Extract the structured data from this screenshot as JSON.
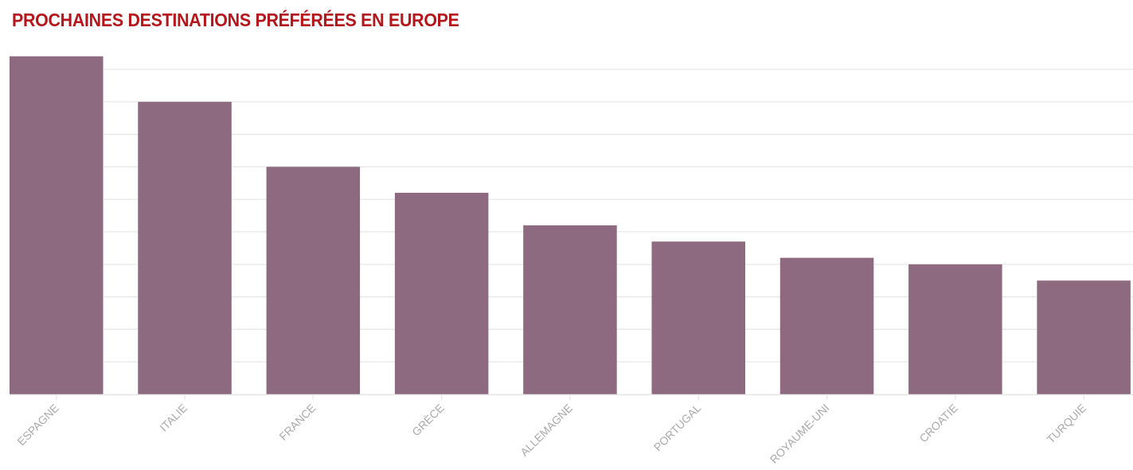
{
  "title": "PROCHAINES DESTINATIONS PRÉFÉRÉES EN EUROPE",
  "colors": {
    "title": "#b5161b",
    "bar": "#8d6a7f",
    "grid": "#e6e6e6",
    "tick_label": "#aaaaaa"
  },
  "chart_data": {
    "type": "bar",
    "title": "PROCHAINES DESTINATIONS PRÉFÉRÉES EN EUROPE",
    "xlabel": "",
    "ylabel": "",
    "categories": [
      "ESPAGNE",
      "ITALIE",
      "FRANCE",
      "GRÈCE",
      "ALLEMAGNE",
      "PORTUGAL",
      "ROYAUME-UNI",
      "CROATIE",
      "TURQUIE"
    ],
    "values": [
      10.4,
      9.0,
      7.0,
      6.2,
      5.2,
      4.7,
      4.2,
      4.0,
      3.5
    ],
    "ylim": [
      0,
      10
    ],
    "grid": true,
    "y_tick_labels_shown": false,
    "legend": "none"
  }
}
